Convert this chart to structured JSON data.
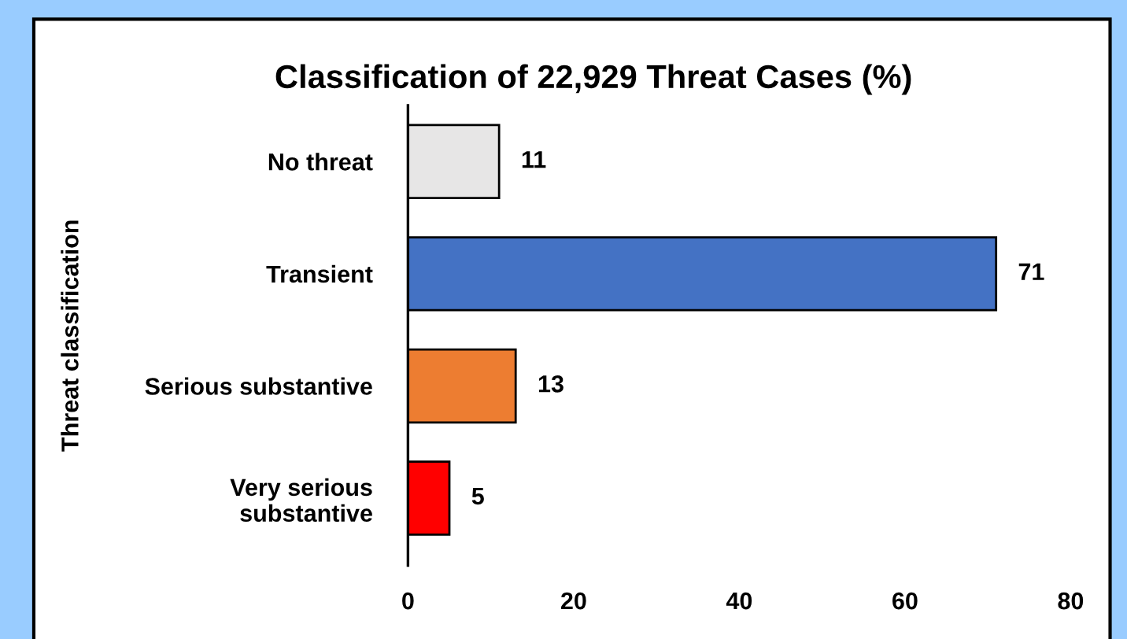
{
  "chart_data": {
    "type": "bar",
    "orientation": "horizontal",
    "title": "Classification of 22,929 Threat Cases (%)",
    "ylabel": "Threat classification",
    "categories": [
      "No threat",
      "Transient",
      "Serious substantive",
      "Very serious\nsubstantive"
    ],
    "values": [
      11,
      71,
      13,
      5
    ],
    "colors": [
      "#e7e6e6",
      "#4472c4",
      "#ed7d31",
      "#ff0000"
    ],
    "xlim": [
      0,
      80
    ],
    "xticks": [
      0,
      20,
      40,
      60,
      80
    ],
    "data_labels": true,
    "grid": false
  }
}
